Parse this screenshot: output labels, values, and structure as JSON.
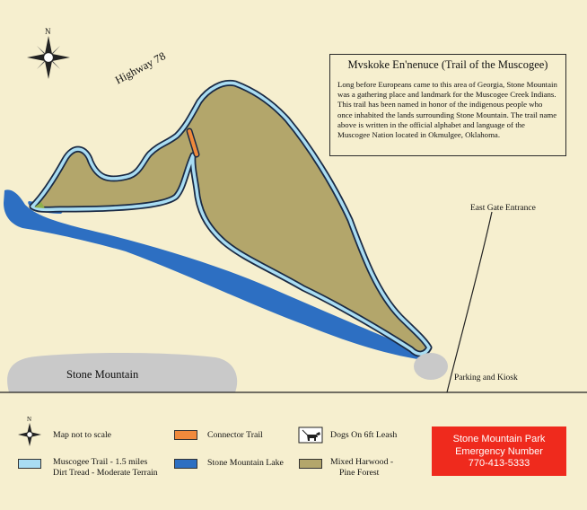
{
  "info": {
    "title": "Mvskoke En'nenuce  (Trail of the Muscogee)",
    "description": "Long before Europeans came to this area of Georgia, Stone Mountain was a gathering place and landmark for the Muscogee Creek Indians. This trail has been named in honor of the indigenous people who once inhabited the lands surrounding Stone Mountain. The trail name above is written in the official alphabet and language of the Muscogee Nation located in Okmulgee, Oklahoma."
  },
  "labels": {
    "highway": "Highway 78",
    "compass_n": "N",
    "east_gate": "East Gate Entrance",
    "stone_mountain": "Stone Mountain",
    "parking": "Parking and Kiosk"
  },
  "legend": {
    "compass_n": "N",
    "not_to_scale": "Map not to scale",
    "connector": "Connector Trail",
    "dogs": "Dogs On 6ft Leash",
    "trail_line1": "Muscogee Trail - 1.5 miles",
    "trail_line2": "Dirt Tread - Moderate Terrain",
    "lake": "Stone Mountain Lake",
    "forest_line1": "Mixed Harwood -",
    "forest_line2": "Pine Forest"
  },
  "emergency": {
    "line1": "Stone Mountain Park",
    "line2": "Emergency Number",
    "line3": "770-413-5333"
  },
  "colors": {
    "background": "#f6efcf",
    "forest": "#b3a66b",
    "lake": "#2d6fc2",
    "trail": "#a9ddf3",
    "connector": "#f08a3c",
    "mountain": "#c9c9c9",
    "emergency": "#ef2a1d"
  }
}
